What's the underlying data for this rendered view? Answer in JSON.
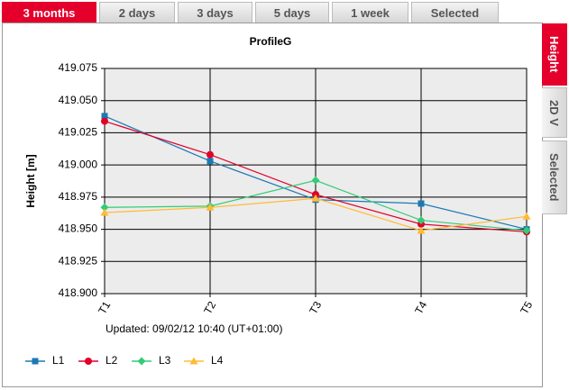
{
  "tabs": [
    "3 months",
    "2 days",
    "3 days",
    "5 days",
    "1 week",
    "Selected"
  ],
  "side_tabs": [
    "Height",
    "2D V",
    "Selected"
  ],
  "updated": "Updated: 09/02/12 10:40 (UT+01:00)",
  "chart_data": {
    "type": "line",
    "title": "ProfileG",
    "y_label": "Height [m]",
    "categories": [
      "T1",
      "T2",
      "T3",
      "T4",
      "T5"
    ],
    "series": [
      {
        "name": "L1",
        "color": "#1a7ab5",
        "marker": "square",
        "values": [
          419.038,
          419.003,
          418.973,
          418.97,
          418.95
        ]
      },
      {
        "name": "L2",
        "color": "#e0002a",
        "marker": "circle",
        "values": [
          419.034,
          419.008,
          418.977,
          418.954,
          418.948
        ]
      },
      {
        "name": "L3",
        "color": "#33cc77",
        "marker": "diamond",
        "values": [
          418.967,
          418.968,
          418.988,
          418.957,
          418.949
        ]
      },
      {
        "name": "L4",
        "color": "#ffbb33",
        "marker": "triangle",
        "values": [
          418.963,
          418.967,
          418.974,
          418.949,
          418.96
        ]
      }
    ],
    "ylim": [
      418.9,
      419.075
    ],
    "yticks": [
      {
        "value": 418.9,
        "label": "418.900"
      },
      418.925,
      {
        "value": 418.95,
        "label": "418.950"
      },
      418.975,
      {
        "value": 419,
        "label": "419.000"
      },
      419.025,
      {
        "value": 419.05,
        "label": "419.050"
      },
      419.075
    ],
    "grid": true,
    "legend": "bottom-left"
  }
}
